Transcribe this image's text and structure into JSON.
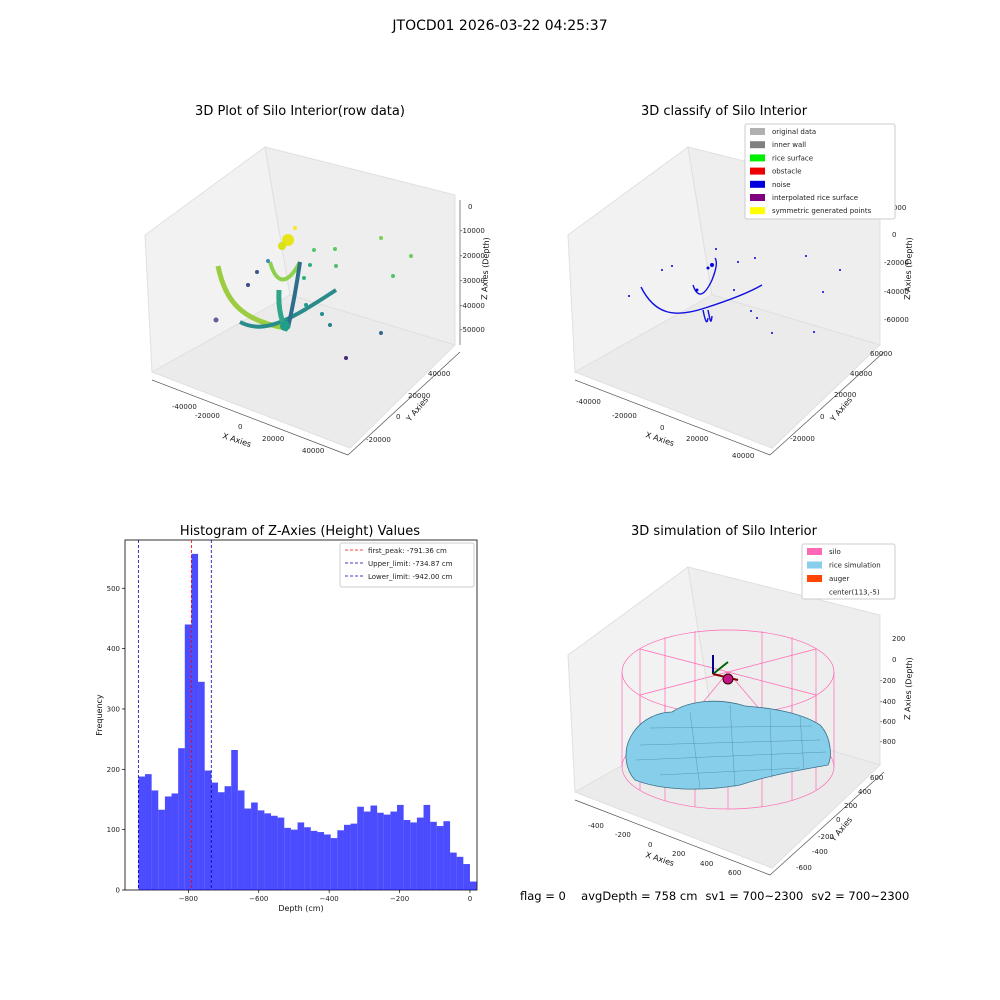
{
  "figure": {
    "title": "JTOCD01 2026-03-22 04:25:37"
  },
  "panels": {
    "raw": {
      "title": "3D Plot of Silo Interior(row data)",
      "xlabel": "X Axies",
      "ylabel": "Y Axies",
      "zlabel": "Z Axies (Depth)",
      "xticks": [
        "-40000",
        "-20000",
        "0",
        "20000",
        "40000"
      ],
      "yticks": [
        "-20000",
        "0",
        "20000",
        "40000"
      ],
      "zticks": [
        "0",
        "-10000",
        "-20000",
        "-30000",
        "-40000",
        "-50000"
      ]
    },
    "classify": {
      "title": "3D classify of Silo Interior",
      "xlabel": "X Axies",
      "ylabel": "Y Axies",
      "zlabel": "Z Axies (Depth)",
      "xticks": [
        "-40000",
        "-20000",
        "0",
        "20000",
        "40000"
      ],
      "yticks": [
        "-20000",
        "0",
        "20000",
        "40000",
        "60000"
      ],
      "zticks": [
        "-60000",
        "-40000",
        "-20000",
        "0",
        "20000"
      ],
      "legend": [
        {
          "label": "original data",
          "color": "#b0b0b0"
        },
        {
          "label": "inner wall",
          "color": "#808080"
        },
        {
          "label": "rice surface",
          "color": "#00ee00"
        },
        {
          "label": "obstacle",
          "color": "#ee0000"
        },
        {
          "label": "noise",
          "color": "#0000dd"
        },
        {
          "label": "interpolated rice surface",
          "color": "#800080"
        },
        {
          "label": "symmetric generated points",
          "color": "#ffff00"
        }
      ]
    },
    "simulation": {
      "title": "3D simulation of Silo Interior",
      "xlabel": "X Axies",
      "ylabel": "Y Axies",
      "zlabel": "Z Axies (Depth)",
      "xticks": [
        "-400",
        "-200",
        "0",
        "200",
        "400",
        "600"
      ],
      "yticks": [
        "-600",
        "-400",
        "-200",
        "0",
        "200",
        "400",
        "600"
      ],
      "zticks": [
        "200",
        "0",
        "-200",
        "-400",
        "-600",
        "-800"
      ],
      "legend": [
        {
          "label": "silo",
          "color": "#ff69b4"
        },
        {
          "label": "rice simulation",
          "color": "#87ceeb"
        },
        {
          "label": "auger",
          "color": "#ff4500"
        },
        {
          "label": "center(113,-5)",
          "color": ""
        }
      ]
    }
  },
  "chart_data": {
    "type": "bar",
    "title": "Histogram of Z-Axies (Height) Values",
    "xlabel": "Depth (cm)",
    "ylabel": "Frequency",
    "xlim": [
      -980,
      20
    ],
    "ylim": [
      0,
      580
    ],
    "xticks": [
      -800,
      -600,
      -400,
      -200,
      0
    ],
    "yticks": [
      0,
      100,
      200,
      300,
      400,
      500
    ],
    "bar_color": "#0000ff",
    "bin_edges_start": -942,
    "bin_width": 18.84,
    "values": [
      188,
      192,
      165,
      133,
      155,
      160,
      235,
      440,
      557,
      345,
      198,
      178,
      162,
      172,
      232,
      165,
      135,
      145,
      132,
      127,
      123,
      120,
      103,
      100,
      112,
      104,
      98,
      96,
      92,
      86,
      99,
      108,
      110,
      138,
      130,
      140,
      128,
      125,
      130,
      141,
      116,
      112,
      120,
      141,
      113,
      106,
      114,
      62,
      55,
      43,
      14
    ],
    "reference_lines": [
      {
        "label": "first_peak: -791.36 cm",
        "value": -791.36,
        "color": "#ff0000"
      },
      {
        "label": "Upper_limit: -734.87 cm",
        "value": -734.87,
        "color": "#0000aa"
      },
      {
        "label": "Lower_limit: -942.00 cm",
        "value": -942.0,
        "color": "#0000aa"
      }
    ],
    "legend_position": "upper right"
  },
  "status": {
    "flag": "flag = 0",
    "avg_depth": "avgDepth = 758 cm",
    "sv1": "sv1 = 700~2300",
    "sv2": "sv2 = 700~2300"
  }
}
